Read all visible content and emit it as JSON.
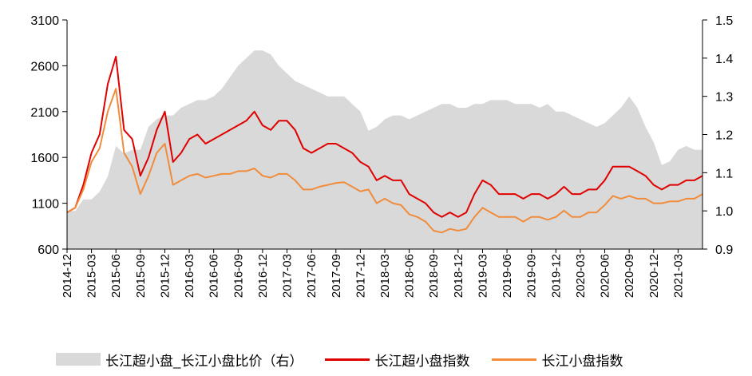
{
  "chart_data": {
    "type": "line",
    "x": [
      "2014-12",
      "2015-03",
      "2015-06",
      "2015-09",
      "2015-12",
      "2016-03",
      "2016-06",
      "2016-09",
      "2016-12",
      "2017-03",
      "2017-06",
      "2017-09",
      "2017-12",
      "2018-03",
      "2018-06",
      "2018-09",
      "2018-12",
      "2019-03",
      "2019-06",
      "2019-09",
      "2019-12",
      "2020-03",
      "2020-06",
      "2020-09",
      "2020-12",
      "2021-03"
    ],
    "y_left": {
      "ticks": [
        "600",
        "1100",
        "1600",
        "2100",
        "2600",
        "3100"
      ],
      "ylim": [
        600,
        3100
      ]
    },
    "y_right": {
      "ticks": [
        "0.9",
        "1.0",
        "1.1",
        "1.2",
        "1.3",
        "1.4",
        "1.5"
      ],
      "ylim": [
        0.9,
        1.5
      ]
    },
    "series": [
      {
        "name": "长江超小盘_长江小盘比价（右）",
        "kind": "area",
        "axis": "right",
        "color": "#d9d9d9",
        "points": [
          [
            "2014-12",
            1.0
          ],
          [
            "2015-01",
            1.0
          ],
          [
            "2015-02",
            1.03
          ],
          [
            "2015-03",
            1.03
          ],
          [
            "2015-04",
            1.05
          ],
          [
            "2015-05",
            1.09
          ],
          [
            "2015-06",
            1.17
          ],
          [
            "2015-07",
            1.15
          ],
          [
            "2015-08",
            1.16
          ],
          [
            "2015-09",
            1.16
          ],
          [
            "2015-10",
            1.22
          ],
          [
            "2015-11",
            1.24
          ],
          [
            "2015-12",
            1.25
          ],
          [
            "2016-01",
            1.25
          ],
          [
            "2016-02",
            1.27
          ],
          [
            "2016-03",
            1.28
          ],
          [
            "2016-04",
            1.29
          ],
          [
            "2016-05",
            1.29
          ],
          [
            "2016-06",
            1.3
          ],
          [
            "2016-07",
            1.32
          ],
          [
            "2016-08",
            1.35
          ],
          [
            "2016-09",
            1.38
          ],
          [
            "2016-10",
            1.4
          ],
          [
            "2016-11",
            1.42
          ],
          [
            "2016-12",
            1.42
          ],
          [
            "2017-01",
            1.41
          ],
          [
            "2017-02",
            1.38
          ],
          [
            "2017-03",
            1.36
          ],
          [
            "2017-04",
            1.34
          ],
          [
            "2017-05",
            1.33
          ],
          [
            "2017-06",
            1.32
          ],
          [
            "2017-07",
            1.31
          ],
          [
            "2017-08",
            1.3
          ],
          [
            "2017-09",
            1.3
          ],
          [
            "2017-10",
            1.3
          ],
          [
            "2017-11",
            1.28
          ],
          [
            "2017-12",
            1.26
          ],
          [
            "2018-01",
            1.21
          ],
          [
            "2018-02",
            1.22
          ],
          [
            "2018-03",
            1.24
          ],
          [
            "2018-04",
            1.25
          ],
          [
            "2018-05",
            1.25
          ],
          [
            "2018-06",
            1.24
          ],
          [
            "2018-07",
            1.25
          ],
          [
            "2018-08",
            1.26
          ],
          [
            "2018-09",
            1.27
          ],
          [
            "2018-10",
            1.28
          ],
          [
            "2018-11",
            1.28
          ],
          [
            "2018-12",
            1.27
          ],
          [
            "2019-01",
            1.27
          ],
          [
            "2019-02",
            1.28
          ],
          [
            "2019-03",
            1.28
          ],
          [
            "2019-04",
            1.29
          ],
          [
            "2019-05",
            1.29
          ],
          [
            "2019-06",
            1.29
          ],
          [
            "2019-07",
            1.28
          ],
          [
            "2019-08",
            1.28
          ],
          [
            "2019-09",
            1.28
          ],
          [
            "2019-10",
            1.27
          ],
          [
            "2019-11",
            1.28
          ],
          [
            "2019-12",
            1.26
          ],
          [
            "2020-01",
            1.26
          ],
          [
            "2020-02",
            1.25
          ],
          [
            "2020-03",
            1.24
          ],
          [
            "2020-04",
            1.23
          ],
          [
            "2020-05",
            1.22
          ],
          [
            "2020-06",
            1.23
          ],
          [
            "2020-07",
            1.25
          ],
          [
            "2020-08",
            1.27
          ],
          [
            "2020-09",
            1.3
          ],
          [
            "2020-10",
            1.27
          ],
          [
            "2020-11",
            1.22
          ],
          [
            "2020-12",
            1.18
          ],
          [
            "2021-01",
            1.12
          ],
          [
            "2021-02",
            1.13
          ],
          [
            "2021-03",
            1.16
          ],
          [
            "2021-04",
            1.17
          ],
          [
            "2021-05",
            1.16
          ],
          [
            "2021-06",
            1.16
          ]
        ]
      },
      {
        "name": "长江超小盘指数",
        "kind": "line",
        "axis": "left",
        "color": "#e00000",
        "points": [
          [
            "2014-12",
            1000
          ],
          [
            "2015-01",
            1050
          ],
          [
            "2015-02",
            1300
          ],
          [
            "2015-03",
            1650
          ],
          [
            "2015-04",
            1850
          ],
          [
            "2015-05",
            2400
          ],
          [
            "2015-06",
            2700
          ],
          [
            "2015-07",
            1900
          ],
          [
            "2015-08",
            1800
          ],
          [
            "2015-09",
            1400
          ],
          [
            "2015-10",
            1600
          ],
          [
            "2015-11",
            1900
          ],
          [
            "2015-12",
            2100
          ],
          [
            "2016-01",
            1550
          ],
          [
            "2016-02",
            1650
          ],
          [
            "2016-03",
            1800
          ],
          [
            "2016-04",
            1850
          ],
          [
            "2016-05",
            1750
          ],
          [
            "2016-06",
            1800
          ],
          [
            "2016-07",
            1850
          ],
          [
            "2016-08",
            1900
          ],
          [
            "2016-09",
            1950
          ],
          [
            "2016-10",
            2000
          ],
          [
            "2016-11",
            2100
          ],
          [
            "2016-12",
            1950
          ],
          [
            "2017-01",
            1900
          ],
          [
            "2017-02",
            2000
          ],
          [
            "2017-03",
            2000
          ],
          [
            "2017-04",
            1900
          ],
          [
            "2017-05",
            1700
          ],
          [
            "2017-06",
            1650
          ],
          [
            "2017-07",
            1700
          ],
          [
            "2017-08",
            1750
          ],
          [
            "2017-09",
            1750
          ],
          [
            "2017-10",
            1700
          ],
          [
            "2017-11",
            1650
          ],
          [
            "2017-12",
            1550
          ],
          [
            "2018-01",
            1500
          ],
          [
            "2018-02",
            1350
          ],
          [
            "2018-03",
            1400
          ],
          [
            "2018-04",
            1350
          ],
          [
            "2018-05",
            1350
          ],
          [
            "2018-06",
            1200
          ],
          [
            "2018-07",
            1150
          ],
          [
            "2018-08",
            1100
          ],
          [
            "2018-09",
            1000
          ],
          [
            "2018-10",
            950
          ],
          [
            "2018-11",
            1000
          ],
          [
            "2018-12",
            950
          ],
          [
            "2019-01",
            1000
          ],
          [
            "2019-02",
            1200
          ],
          [
            "2019-03",
            1350
          ],
          [
            "2019-04",
            1300
          ],
          [
            "2019-05",
            1200
          ],
          [
            "2019-06",
            1200
          ],
          [
            "2019-07",
            1200
          ],
          [
            "2019-08",
            1150
          ],
          [
            "2019-09",
            1200
          ],
          [
            "2019-10",
            1200
          ],
          [
            "2019-11",
            1150
          ],
          [
            "2019-12",
            1200
          ],
          [
            "2020-01",
            1280
          ],
          [
            "2020-02",
            1200
          ],
          [
            "2020-03",
            1200
          ],
          [
            "2020-04",
            1250
          ],
          [
            "2020-05",
            1250
          ],
          [
            "2020-06",
            1350
          ],
          [
            "2020-07",
            1500
          ],
          [
            "2020-08",
            1500
          ],
          [
            "2020-09",
            1500
          ],
          [
            "2020-10",
            1450
          ],
          [
            "2020-11",
            1400
          ],
          [
            "2020-12",
            1300
          ],
          [
            "2021-01",
            1250
          ],
          [
            "2021-02",
            1300
          ],
          [
            "2021-03",
            1300
          ],
          [
            "2021-04",
            1350
          ],
          [
            "2021-05",
            1350
          ],
          [
            "2021-06",
            1400
          ]
        ]
      },
      {
        "name": "长江小盘指数",
        "kind": "line",
        "axis": "left",
        "color": "#f08c3c",
        "points": [
          [
            "2014-12",
            1000
          ],
          [
            "2015-01",
            1050
          ],
          [
            "2015-02",
            1250
          ],
          [
            "2015-03",
            1550
          ],
          [
            "2015-04",
            1700
          ],
          [
            "2015-05",
            2100
          ],
          [
            "2015-06",
            2350
          ],
          [
            "2015-07",
            1650
          ],
          [
            "2015-08",
            1500
          ],
          [
            "2015-09",
            1200
          ],
          [
            "2015-10",
            1400
          ],
          [
            "2015-11",
            1650
          ],
          [
            "2015-12",
            1750
          ],
          [
            "2016-01",
            1300
          ],
          [
            "2016-02",
            1350
          ],
          [
            "2016-03",
            1400
          ],
          [
            "2016-04",
            1420
          ],
          [
            "2016-05",
            1380
          ],
          [
            "2016-06",
            1400
          ],
          [
            "2016-07",
            1420
          ],
          [
            "2016-08",
            1420
          ],
          [
            "2016-09",
            1450
          ],
          [
            "2016-10",
            1450
          ],
          [
            "2016-11",
            1480
          ],
          [
            "2016-12",
            1400
          ],
          [
            "2017-01",
            1380
          ],
          [
            "2017-02",
            1420
          ],
          [
            "2017-03",
            1420
          ],
          [
            "2017-04",
            1350
          ],
          [
            "2017-05",
            1250
          ],
          [
            "2017-06",
            1250
          ],
          [
            "2017-07",
            1280
          ],
          [
            "2017-08",
            1300
          ],
          [
            "2017-09",
            1320
          ],
          [
            "2017-10",
            1330
          ],
          [
            "2017-11",
            1280
          ],
          [
            "2017-12",
            1230
          ],
          [
            "2018-01",
            1250
          ],
          [
            "2018-02",
            1100
          ],
          [
            "2018-03",
            1150
          ],
          [
            "2018-04",
            1100
          ],
          [
            "2018-05",
            1080
          ],
          [
            "2018-06",
            980
          ],
          [
            "2018-07",
            950
          ],
          [
            "2018-08",
            900
          ],
          [
            "2018-09",
            800
          ],
          [
            "2018-10",
            780
          ],
          [
            "2018-11",
            820
          ],
          [
            "2018-12",
            800
          ],
          [
            "2019-01",
            820
          ],
          [
            "2019-02",
            950
          ],
          [
            "2019-03",
            1050
          ],
          [
            "2019-04",
            1000
          ],
          [
            "2019-05",
            950
          ],
          [
            "2019-06",
            950
          ],
          [
            "2019-07",
            950
          ],
          [
            "2019-08",
            900
          ],
          [
            "2019-09",
            950
          ],
          [
            "2019-10",
            950
          ],
          [
            "2019-11",
            920
          ],
          [
            "2019-12",
            950
          ],
          [
            "2020-01",
            1020
          ],
          [
            "2020-02",
            950
          ],
          [
            "2020-03",
            950
          ],
          [
            "2020-04",
            1000
          ],
          [
            "2020-05",
            1000
          ],
          [
            "2020-06",
            1080
          ],
          [
            "2020-07",
            1180
          ],
          [
            "2020-08",
            1150
          ],
          [
            "2020-09",
            1180
          ],
          [
            "2020-10",
            1150
          ],
          [
            "2020-11",
            1150
          ],
          [
            "2020-12",
            1100
          ],
          [
            "2021-01",
            1100
          ],
          [
            "2021-02",
            1120
          ],
          [
            "2021-03",
            1120
          ],
          [
            "2021-04",
            1150
          ],
          [
            "2021-05",
            1150
          ],
          [
            "2021-06",
            1200
          ]
        ]
      }
    ],
    "legend": {
      "placement": "bottom",
      "items": [
        "长江超小盘_长江小盘比价（右）",
        "长江超小盘指数",
        "长江小盘指数"
      ]
    },
    "grid": false
  }
}
